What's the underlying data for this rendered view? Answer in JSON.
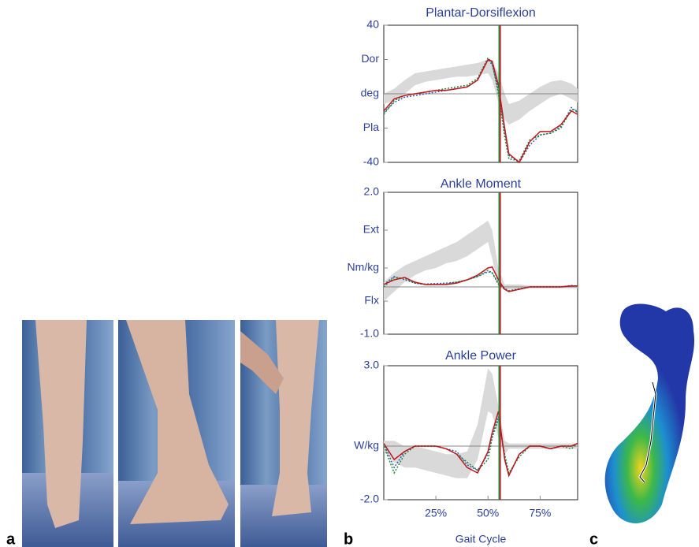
{
  "panel_labels": [
    "a",
    "b",
    "c"
  ],
  "chart_data": [
    {
      "type": "line",
      "title": "Plantar-Dorsiflexion",
      "x": [
        0,
        5,
        10,
        15,
        20,
        25,
        30,
        35,
        40,
        45,
        50,
        52,
        55,
        58,
        60,
        65,
        70,
        75,
        80,
        85,
        90,
        93
      ],
      "xlim": [
        0,
        93
      ],
      "ylim": [
        -40,
        40
      ],
      "yticks": [
        40,
        {
          "value": 20,
          "label": "Dor"
        },
        {
          "value": 0,
          "label": "deg"
        },
        {
          "value": -20,
          "label": "Pla"
        },
        -40
      ],
      "zero_line": true,
      "band": {
        "color": "#d9d9d9",
        "lower": [
          -6,
          -4,
          0,
          5,
          7,
          8,
          9,
          10,
          10,
          11,
          12,
          8,
          -5,
          -15,
          -18,
          -15,
          -10,
          -6,
          -2,
          0,
          -3,
          -5
        ],
        "upper": [
          0,
          3,
          8,
          12,
          13,
          14,
          15,
          16,
          17,
          18,
          20,
          19,
          12,
          0,
          -6,
          -4,
          0,
          4,
          7,
          8,
          6,
          3
        ]
      },
      "series": [
        {
          "color": "#2f5fb0",
          "dash": true,
          "values": [
            -11,
            -5,
            -2,
            -1,
            0,
            1,
            2,
            3,
            4,
            8,
            20,
            17,
            2,
            -22,
            -36,
            -40,
            -30,
            -24,
            -23,
            -19,
            -8,
            -11
          ]
        },
        {
          "color": "#1e8a3a",
          "dash": true,
          "values": [
            -12,
            -4,
            -1,
            0,
            1,
            2,
            3,
            4,
            5,
            9,
            21,
            18,
            0,
            -25,
            -38,
            -39,
            -27,
            -24,
            -23,
            -20,
            -9,
            -10
          ]
        },
        {
          "color": "#c0161b",
          "dash": false,
          "values": [
            -10,
            -3,
            -1,
            0,
            1,
            2,
            2,
            3,
            4,
            8,
            20,
            19,
            5,
            -20,
            -35,
            -40,
            -28,
            -22,
            -22,
            -18,
            -10,
            -12
          ]
        }
      ],
      "events": [
        {
          "x": 55.3,
          "color": "#1e8a3a"
        },
        {
          "x": 55.9,
          "color": "#c0161b"
        }
      ]
    },
    {
      "type": "line",
      "title": "Ankle Moment",
      "x": [
        0,
        5,
        10,
        15,
        20,
        25,
        30,
        35,
        40,
        45,
        50,
        52,
        55,
        58,
        60,
        65,
        70,
        75,
        80,
        85,
        90,
        93
      ],
      "xlim": [
        0,
        93
      ],
      "ylim": [
        -1,
        2
      ],
      "yticks": [
        {
          "value": 2,
          "label": "2.0"
        },
        {
          "value": 1.2,
          "label": "Ext"
        },
        {
          "value": 0.4,
          "label": "Nm/kg"
        },
        {
          "value": -0.3,
          "label": "Flx"
        },
        {
          "value": -1,
          "label": "-1.0"
        }
      ],
      "zero_line": true,
      "band": {
        "color": "#d9d9d9",
        "lower": [
          -0.3,
          -0.1,
          0.1,
          0.25,
          0.35,
          0.4,
          0.5,
          0.55,
          0.65,
          0.8,
          0.95,
          0.6,
          0.0,
          -0.05,
          -0.05,
          -0.05,
          -0.03,
          -0.03,
          -0.03,
          -0.03,
          -0.03,
          -0.03
        ],
        "upper": [
          0.1,
          0.3,
          0.45,
          0.55,
          0.65,
          0.75,
          0.85,
          0.95,
          1.1,
          1.25,
          1.4,
          1.2,
          0.4,
          0.05,
          0.05,
          0.05,
          0.03,
          0.03,
          0.03,
          0.03,
          0.03,
          0.03
        ]
      },
      "series": [
        {
          "color": "#2f5fb0",
          "dash": true,
          "values": [
            0.05,
            0.22,
            0.15,
            0.08,
            0.06,
            0.07,
            0.08,
            0.1,
            0.15,
            0.22,
            0.32,
            0.3,
            0.08,
            -0.03,
            -0.08,
            -0.04,
            0,
            0,
            0,
            0,
            0.03,
            0.02
          ]
        },
        {
          "color": "#1e8a3a",
          "dash": true,
          "values": [
            0.0,
            0.2,
            0.18,
            0.08,
            0.05,
            0.05,
            0.06,
            0.1,
            0.15,
            0.22,
            0.35,
            0.3,
            0.05,
            -0.05,
            -0.08,
            -0.05,
            0,
            0,
            0,
            0,
            0.02,
            0.02
          ]
        },
        {
          "color": "#c0161b",
          "dash": false,
          "values": [
            0.05,
            0.15,
            0.2,
            0.1,
            0.05,
            0.05,
            0.05,
            0.08,
            0.15,
            0.25,
            0.4,
            0.42,
            0.15,
            -0.05,
            -0.1,
            -0.05,
            0,
            0,
            0,
            0,
            0.02,
            0.02
          ]
        }
      ],
      "events": [
        {
          "x": 55.3,
          "color": "#1e8a3a"
        },
        {
          "x": 55.9,
          "color": "#c0161b"
        }
      ]
    },
    {
      "type": "line",
      "title": "Ankle Power",
      "xlabel": "Gait Cycle",
      "x": [
        0,
        5,
        10,
        15,
        20,
        25,
        30,
        35,
        40,
        45,
        50,
        52,
        55,
        58,
        60,
        65,
        70,
        75,
        80,
        85,
        90,
        93
      ],
      "xlim": [
        0,
        93
      ],
      "ylim": [
        -2,
        3
      ],
      "xticks": [
        {
          "value": 25,
          "label": "25%"
        },
        {
          "value": 50,
          "label": "50%"
        },
        {
          "value": 75,
          "label": "75%"
        }
      ],
      "yticks": [
        {
          "value": 3,
          "label": "3.0"
        },
        {
          "value": 0,
          "label": "W/kg"
        },
        {
          "value": -2,
          "label": "-2.0"
        }
      ],
      "zero_line": true,
      "band": {
        "color": "#d9d9d9",
        "lower": [
          -0.2,
          -0.6,
          -0.8,
          -0.8,
          -0.9,
          -1.0,
          -1.1,
          -1.2,
          -1.2,
          -0.5,
          1.3,
          1.2,
          0.3,
          -0.3,
          -0.1,
          -0.1,
          -0.1,
          -0.1,
          -0.1,
          -0.1,
          -0.1,
          -0.1
        ],
        "upper": [
          0.2,
          0.2,
          0,
          0,
          -0.1,
          -0.2,
          -0.3,
          -0.3,
          -0.2,
          0.8,
          2.9,
          2.7,
          1.5,
          0.2,
          0.1,
          0.1,
          0.1,
          0.1,
          0.1,
          0.1,
          0.1,
          0.1
        ]
      },
      "series": [
        {
          "color": "#2f5fb0",
          "dash": true,
          "values": [
            0.1,
            -0.8,
            -0.2,
            0,
            0,
            0,
            -0.1,
            -0.2,
            -0.7,
            -0.9,
            -0.3,
            0.4,
            1.1,
            -0.4,
            -1.1,
            -0.3,
            0,
            0,
            -0.1,
            0,
            0,
            0.1
          ]
        },
        {
          "color": "#1e8a3a",
          "dash": true,
          "values": [
            0,
            -1.0,
            -0.3,
            0,
            0,
            0,
            -0.1,
            -0.3,
            -0.6,
            -0.9,
            -0.5,
            0.3,
            1.0,
            -0.3,
            -1.0,
            -0.4,
            0,
            0,
            -0.1,
            0,
            -0.1,
            0.1
          ]
        },
        {
          "color": "#c0161b",
          "dash": false,
          "values": [
            0.1,
            -0.5,
            -0.2,
            0,
            0,
            0,
            -0.1,
            -0.3,
            -0.8,
            -1.0,
            -0.2,
            0.5,
            1.3,
            -0.5,
            -1.1,
            -0.3,
            0,
            0,
            -0.1,
            0,
            0,
            0.1
          ]
        }
      ],
      "events": [
        {
          "x": 55.3,
          "color": "#1e8a3a"
        },
        {
          "x": 55.9,
          "color": "#c0161b"
        }
      ]
    }
  ]
}
